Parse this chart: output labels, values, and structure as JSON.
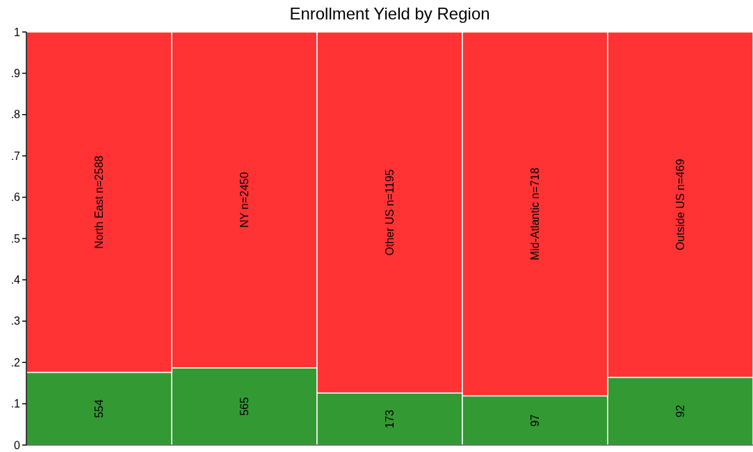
{
  "chart_data": {
    "type": "bar",
    "title": "Enrollment Yield by Region",
    "stacked": true,
    "categories": [
      "North East n=2588",
      "NY n=2450",
      "Other US n=1195",
      "Mid-Atlantic n=718",
      "Outside US n=469"
    ],
    "series": [
      {
        "color": "#339933",
        "values": [
          0.176,
          0.187,
          0.126,
          0.119,
          0.164
        ]
      },
      {
        "color": "#ff3333",
        "values": [
          0.824,
          0.813,
          0.874,
          0.881,
          0.836
        ]
      }
    ],
    "annotations": [
      "554",
      "565",
      "173",
      "97",
      "92"
    ],
    "ylim": [
      0,
      1
    ],
    "yticks": [
      0,
      {
        "value": 0.1,
        "label": ".1"
      },
      {
        "value": 0.2,
        "label": ".2"
      },
      {
        "value": 0.3,
        "label": ".3"
      },
      {
        "value": 0.4,
        "label": ".4"
      },
      {
        "value": 0.5,
        "label": ".5"
      },
      {
        "value": 0.6,
        "label": ".6"
      },
      {
        "value": 0.7,
        "label": ".7"
      },
      {
        "value": 0.8,
        "label": ".8"
      },
      {
        "value": 0.9,
        "label": ".9"
      },
      1
    ]
  }
}
